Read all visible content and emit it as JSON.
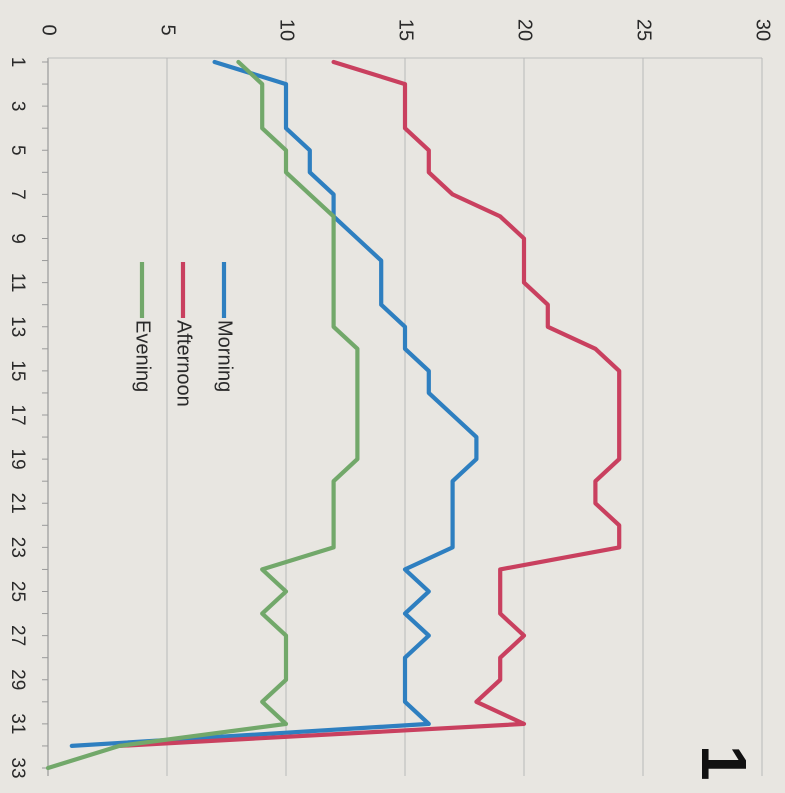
{
  "chart_data": {
    "type": "line",
    "orientation": "rotated 90 degrees clockwise (y axis runs left to right along top, x axis runs top to bottom along left)",
    "x": [
      1,
      2,
      3,
      4,
      5,
      6,
      7,
      8,
      9,
      10,
      11,
      12,
      13,
      14,
      15,
      16,
      17,
      18,
      19,
      20,
      21,
      22,
      23,
      24,
      25,
      26,
      27,
      28,
      29,
      30,
      31,
      32,
      33
    ],
    "x_tick_labels": [
      "1",
      "3",
      "5",
      "7",
      "9",
      "11",
      "13",
      "15",
      "17",
      "19",
      "21",
      "23",
      "25",
      "27",
      "29",
      "31",
      "33"
    ],
    "y_tick_labels": [
      "0",
      "5",
      "10",
      "15",
      "20",
      "25",
      "30"
    ],
    "ylim": [
      0,
      30
    ],
    "grid": true,
    "legend_position": "inside, upper-left area (rotated)",
    "series": [
      {
        "name": "Morning",
        "color": "#2e7fc0",
        "values": [
          7,
          10,
          10,
          10,
          11,
          11,
          12,
          12,
          13,
          14,
          14,
          14,
          15,
          15,
          16,
          16,
          17,
          18,
          18,
          17,
          17,
          17,
          17,
          15,
          16,
          15,
          16,
          15,
          15,
          15,
          16,
          1,
          null
        ]
      },
      {
        "name": "Afternoon",
        "color": "#c9405f",
        "values": [
          12,
          15,
          15,
          15,
          16,
          16,
          17,
          19,
          20,
          20,
          20,
          21,
          21,
          23,
          24,
          24,
          24,
          24,
          24,
          23,
          23,
          24,
          24,
          19,
          19,
          19,
          20,
          19,
          19,
          18,
          20,
          3,
          null
        ]
      },
      {
        "name": "Evening",
        "color": "#72a86a",
        "values": [
          8,
          9,
          9,
          9,
          10,
          10,
          11,
          12,
          12,
          12,
          12,
          12,
          12,
          13,
          13,
          13,
          13,
          13,
          13,
          12,
          12,
          12,
          12,
          9,
          10,
          9,
          10,
          10,
          10,
          9,
          10,
          3,
          0
        ]
      }
    ]
  },
  "page_number": "1"
}
